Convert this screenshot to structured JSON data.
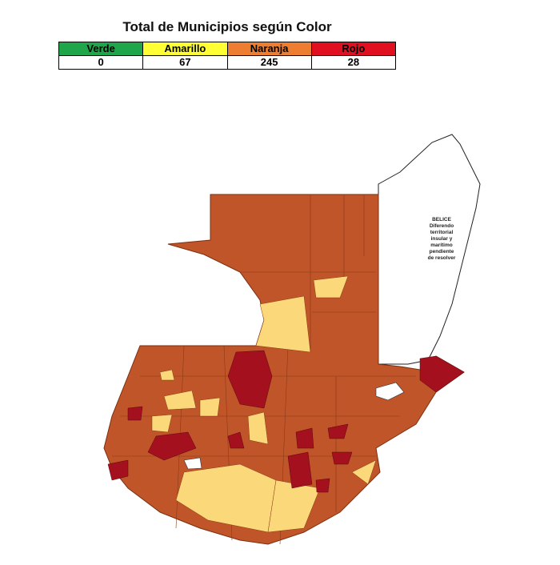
{
  "header": {
    "title": "Total de Municipios según Color"
  },
  "table": {
    "headers": [
      "Verde",
      "Amarillo",
      "Naranja",
      "Rojo"
    ],
    "values": [
      0,
      67,
      245,
      28
    ]
  },
  "map": {
    "belize_label": [
      "BELICE",
      "Diferendo",
      "territorial",
      "insular y",
      "marítimo",
      "pendiente",
      "de resolver"
    ]
  }
}
